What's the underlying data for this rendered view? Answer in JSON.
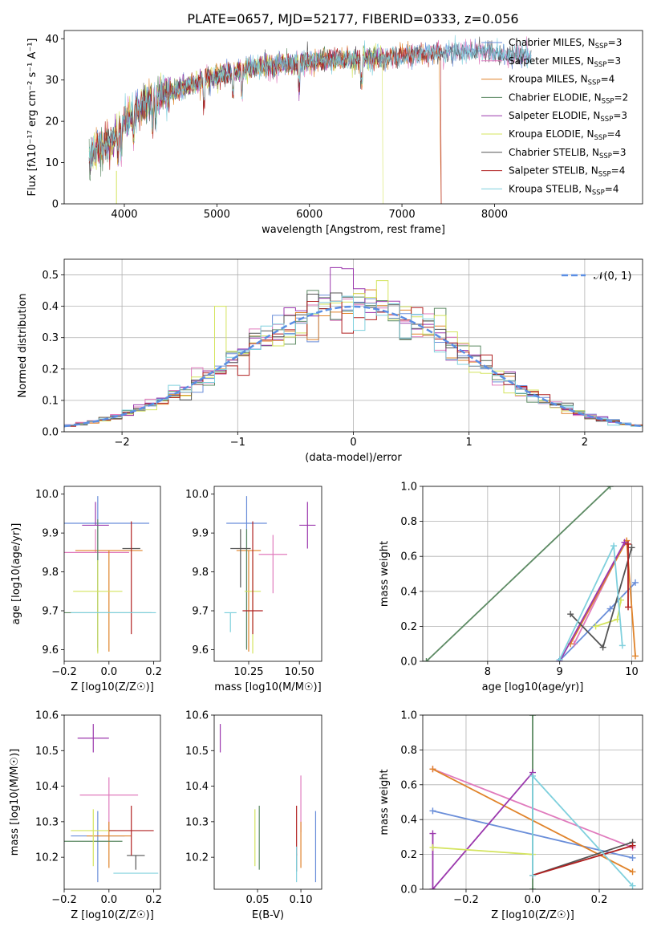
{
  "figure_title": "PLATE=0657, MJD=52177, FIBERID=0333, z=0.056",
  "colors": {
    "Chabrier MILES": "#6a8ed9",
    "Salpeter MILES": "#e07bbd",
    "Kroupa MILES": "#e0832a",
    "Chabrier ELODIE": "#5c8a63",
    "Salpeter ELODIE": "#9b38ad",
    "Kroupa ELODIE": "#d4e45e",
    "Chabrier STELIB": "#555555",
    "Salpeter STELIB": "#b02020",
    "Kroupa STELIB": "#7fd0dd",
    "normal": "#5b8ee3"
  },
  "chart_data": [
    {
      "id": "spectrum",
      "type": "line",
      "title": "",
      "xlabel": "wavelength [Angstrom, rest frame]",
      "ylabel": "Flux [fλ10⁻¹⁷ erg cm⁻² s⁻¹ A⁻¹]",
      "xlim": [
        3350,
        9600
      ],
      "ylim": [
        0,
        42
      ],
      "xticks": [
        4000,
        5000,
        6000,
        7000,
        8000
      ],
      "yticks": [
        0,
        10,
        20,
        30,
        40
      ],
      "legend_position": "right",
      "legend": [
        "Chabrier MILES, N_SSP=3",
        "Salpeter MILES, N_SSP=3",
        "Kroupa MILES, N_SSP=4",
        "Chabrier ELODIE, N_SSP=2",
        "Salpeter ELODIE, N_SSP=3",
        "Kroupa ELODIE, N_SSP=4",
        "Chabrier STELIB, N_SSP=3",
        "Salpeter STELIB, N_SSP=4",
        "Kroupa STELIB, N_SSP=4"
      ],
      "continuum": {
        "x": [
          3620,
          3700,
          3800,
          3900,
          4000,
          4200,
          4400,
          4600,
          4800,
          5000,
          5200,
          5400,
          5600,
          5800,
          6000,
          6200,
          6400,
          6600,
          6800,
          7000,
          7200,
          7400,
          7600,
          7800,
          8000,
          8200,
          8400
        ],
        "y": [
          11,
          13,
          14,
          16,
          20,
          24,
          26.5,
          28,
          29.5,
          31,
          32,
          33,
          33.5,
          34,
          34.5,
          35,
          35,
          35.2,
          35.5,
          35.8,
          36.2,
          36.6,
          37,
          37,
          36.5,
          36,
          36
        ]
      },
      "absorption_lines": [
        3933,
        3968,
        4102,
        4304,
        4340,
        4861,
        5175,
        5270,
        5890,
        6563
      ]
    },
    {
      "id": "residual_hist",
      "type": "line",
      "title": "",
      "xlabel": "(data-model)/error",
      "ylabel": "Normed distribution",
      "xlim": [
        -2.5,
        2.5
      ],
      "ylim": [
        0,
        0.55
      ],
      "xticks": [
        -2,
        -1,
        0,
        1,
        2
      ],
      "yticks": [
        0.0,
        0.1,
        0.2,
        0.3,
        0.4,
        0.5
      ],
      "legend_position": "top-right",
      "legend": [
        "𝒩(0, 1)"
      ],
      "bin_width": 0.1
    },
    {
      "id": "age_vs_Z",
      "type": "scatter",
      "xlabel": "Z [log10(Z/Z☉)]",
      "ylabel": "age  [log10(age/yr)]",
      "xlim": [
        -0.2,
        0.23
      ],
      "ylim": [
        9.57,
        10.02
      ],
      "xticks": [
        -0.2,
        0.0,
        0.2
      ],
      "yticks": [
        9.6,
        9.7,
        9.8,
        9.9,
        10.0
      ],
      "series": [
        {
          "name": "Chabrier MILES",
          "x": -0.05,
          "xerr": 0.23,
          "y": 9.925,
          "yerr": [
            0.32,
            0.07
          ]
        },
        {
          "name": "Salpeter MILES",
          "x": -0.06,
          "xerr": 0.15,
          "y": 9.85,
          "yerr": [
            0.0,
            0.06
          ]
        },
        {
          "name": "Kroupa MILES",
          "x": 0.0,
          "xerr": 0.15,
          "y": 9.855,
          "yerr": [
            0.26,
            0.0
          ]
        },
        {
          "name": "Chabrier ELODIE",
          "x": -0.05,
          "xerr": 0.24,
          "y": 9.695,
          "yerr": [
            0.1,
            0.24
          ]
        },
        {
          "name": "Salpeter ELODIE",
          "x": -0.06,
          "xerr": 0.06,
          "y": 9.92,
          "yerr": [
            0.0,
            0.06
          ]
        },
        {
          "name": "Kroupa ELODIE",
          "x": -0.05,
          "xerr": 0.11,
          "y": 9.75,
          "yerr": [
            0.16,
            0.08
          ]
        },
        {
          "name": "Chabrier STELIB",
          "x": 0.1,
          "xerr": 0.04,
          "y": 9.86,
          "yerr": [
            0.0,
            0.0
          ]
        },
        {
          "name": "Salpeter STELIB",
          "x": 0.1,
          "xerr": 0.0,
          "y": 9.7,
          "yerr": [
            0.06,
            0.23
          ]
        },
        {
          "name": "Kroupa STELIB",
          "x": 0.02,
          "xerr": 0.19,
          "y": 9.695,
          "yerr": [
            0.0,
            0.0
          ]
        }
      ]
    },
    {
      "id": "age_vs_mass",
      "type": "scatter",
      "xlabel": "mass [log10(M/M☉)]",
      "ylabel": "",
      "xlim": [
        10.08,
        10.61
      ],
      "ylim": [
        9.57,
        10.02
      ],
      "xticks": [
        10.25,
        10.5
      ],
      "yticks": [
        9.6,
        9.7,
        9.8,
        9.9,
        10.0
      ],
      "series": [
        {
          "name": "Chabrier MILES",
          "x": 10.24,
          "xerr": 0.1,
          "y": 9.925,
          "yerr": [
            0.32,
            0.07
          ]
        },
        {
          "name": "Salpeter MILES",
          "x": 10.37,
          "xerr": 0.07,
          "y": 9.845,
          "yerr": [
            0.1,
            0.05
          ]
        },
        {
          "name": "Kroupa MILES",
          "x": 10.25,
          "xerr": 0.06,
          "y": 9.855,
          "yerr": [
            0.26,
            0.0
          ]
        },
        {
          "name": "Chabrier ELODIE",
          "x": 10.24,
          "xerr": 0.0,
          "y": 9.7,
          "yerr": [
            0.1,
            0.21
          ]
        },
        {
          "name": "Salpeter ELODIE",
          "x": 10.54,
          "xerr": 0.04,
          "y": 9.92,
          "yerr": [
            0.06,
            0.06
          ]
        },
        {
          "name": "Kroupa ELODIE",
          "x": 10.27,
          "xerr": 0.04,
          "y": 9.75,
          "yerr": [
            0.16,
            0.08
          ]
        },
        {
          "name": "Chabrier STELIB",
          "x": 10.21,
          "xerr": 0.05,
          "y": 9.86,
          "yerr": [
            0.1,
            0.05
          ]
        },
        {
          "name": "Salpeter STELIB",
          "x": 10.27,
          "xerr": 0.05,
          "y": 9.7,
          "yerr": [
            0.06,
            0.23
          ]
        },
        {
          "name": "Kroupa STELIB",
          "x": 10.16,
          "xerr": 0.03,
          "y": 9.695,
          "yerr": [
            0.05,
            0.0
          ]
        }
      ]
    },
    {
      "id": "weight_vs_age",
      "type": "line",
      "xlabel": "age  [log10(age/yr)]",
      "ylabel": "mass weight",
      "xlim": [
        7.1,
        10.15
      ],
      "ylim": [
        0,
        1.0
      ],
      "xticks": [
        8,
        9,
        10
      ],
      "yticks": [
        0.0,
        0.2,
        0.4,
        0.6,
        0.8,
        1.0
      ],
      "series": [
        {
          "name": "Chabrier MILES",
          "x": [
            8.99,
            9.7,
            10.05
          ],
          "y": [
            0.0,
            0.3,
            0.45
          ]
        },
        {
          "name": "Salpeter MILES",
          "x": [
            9.2,
            9.9
          ],
          "y": [
            0.1,
            0.68
          ]
        },
        {
          "name": "Kroupa MILES",
          "x": [
            9.15,
            9.93,
            10.05
          ],
          "y": [
            0.1,
            0.69,
            0.03
          ]
        },
        {
          "name": "Chabrier ELODIE",
          "x": [
            7.15,
            9.7
          ],
          "y": [
            0.0,
            1.0
          ]
        },
        {
          "name": "Salpeter ELODIE",
          "x": [
            9.0,
            9.9
          ],
          "y": [
            0.0,
            0.68
          ]
        },
        {
          "name": "Kroupa ELODIE",
          "x": [
            9.5,
            9.8,
            9.85
          ],
          "y": [
            0.2,
            0.24,
            0.35
          ]
        },
        {
          "name": "Chabrier STELIB",
          "x": [
            9.15,
            9.6,
            10.0
          ],
          "y": [
            0.27,
            0.08,
            0.65
          ]
        },
        {
          "name": "Salpeter STELIB",
          "x": [
            9.95,
            9.95
          ],
          "y": [
            0.31,
            0.67
          ]
        },
        {
          "name": "Kroupa STELIB",
          "x": [
            9.0,
            9.75,
            9.87
          ],
          "y": [
            0.01,
            0.66,
            0.09
          ]
        }
      ]
    },
    {
      "id": "mass_vs_Z",
      "type": "scatter",
      "xlabel": "Z [log10(Z/Z☉)]",
      "ylabel": "mass [log10(M/M☉)]",
      "xlim": [
        -0.2,
        0.23
      ],
      "ylim": [
        10.11,
        10.6
      ],
      "xticks": [
        -0.2,
        0.0,
        0.2
      ],
      "yticks": [
        10.2,
        10.3,
        10.4,
        10.5,
        10.6
      ],
      "series": [
        {
          "name": "Chabrier MILES",
          "x": -0.05,
          "xerr": 0.12,
          "y": 10.26,
          "yerr": [
            0.13,
            0.07
          ]
        },
        {
          "name": "Salpeter MILES",
          "x": 0.0,
          "xerr": 0.13,
          "y": 10.375,
          "yerr": [
            0.1,
            0.05
          ]
        },
        {
          "name": "Kroupa MILES",
          "x": 0.0,
          "xerr": 0.1,
          "y": 10.26,
          "yerr": [
            0.09,
            0.04
          ]
        },
        {
          "name": "Chabrier ELODIE",
          "x": -0.07,
          "xerr": 0.13,
          "y": 10.245,
          "yerr": [
            0.0,
            0.0
          ]
        },
        {
          "name": "Salpeter ELODIE",
          "x": -0.07,
          "xerr": 0.07,
          "y": 10.535,
          "yerr": [
            0.04,
            0.04
          ]
        },
        {
          "name": "Kroupa ELODIE",
          "x": -0.07,
          "xerr": 0.1,
          "y": 10.275,
          "yerr": [
            0.1,
            0.06
          ]
        },
        {
          "name": "Chabrier STELIB",
          "x": 0.12,
          "xerr": 0.04,
          "y": 10.205,
          "yerr": [
            0.04,
            0.0
          ]
        },
        {
          "name": "Salpeter STELIB",
          "x": 0.1,
          "xerr": 0.1,
          "y": 10.275,
          "yerr": [
            0.07,
            0.07
          ]
        },
        {
          "name": "Kroupa STELIB",
          "x": 0.12,
          "xerr": 0.1,
          "y": 10.155,
          "yerr": [
            0.0,
            0.0
          ]
        }
      ]
    },
    {
      "id": "mass_vs_EBV",
      "type": "scatter",
      "xlabel": "E(B-V)",
      "ylabel": "",
      "xlim": [
        0.0,
        0.124
      ],
      "ylim": [
        10.11,
        10.6
      ],
      "xticks": [
        0.05,
        0.1
      ],
      "yticks": [
        10.2,
        10.3,
        10.4,
        10.5,
        10.6
      ],
      "series": [
        {
          "name": "Chabrier MILES",
          "x": 0.117,
          "xerr": 0.0,
          "y": 10.26,
          "yerr": [
            0.13,
            0.07
          ]
        },
        {
          "name": "Salpeter MILES",
          "x": 0.1,
          "xerr": 0.0,
          "y": 10.37,
          "yerr": [
            0.1,
            0.06
          ]
        },
        {
          "name": "Kroupa MILES",
          "x": 0.1,
          "xerr": 0.0,
          "y": 10.26,
          "yerr": [
            0.09,
            0.04
          ]
        },
        {
          "name": "Chabrier ELODIE",
          "x": 0.052,
          "xerr": 0.0,
          "y": 10.245,
          "yerr": [
            0.08,
            0.1
          ]
        },
        {
          "name": "Salpeter ELODIE",
          "x": 0.007,
          "xerr": 0.0,
          "y": 10.535,
          "yerr": [
            0.04,
            0.04
          ]
        },
        {
          "name": "Kroupa ELODIE",
          "x": 0.047,
          "xerr": 0.0,
          "y": 10.275,
          "yerr": [
            0.1,
            0.06
          ]
        },
        {
          "name": "Chabrier STELIB",
          "x": 0.095,
          "xerr": 0.0,
          "y": 10.21,
          "yerr": [
            0.05,
            0.0
          ]
        },
        {
          "name": "Salpeter STELIB",
          "x": 0.095,
          "xerr": 0.0,
          "y": 10.275,
          "yerr": [
            0.07,
            0.07
          ]
        },
        {
          "name": "Kroupa STELIB",
          "x": 0.095,
          "xerr": 0.0,
          "y": 10.18,
          "yerr": [
            0.05,
            0.05
          ]
        }
      ]
    },
    {
      "id": "weight_vs_Z",
      "type": "line",
      "xlabel": "Z [log10(Z/Z☉)]",
      "ylabel": "mass weight",
      "xlim": [
        -0.33,
        0.33
      ],
      "ylim": [
        0,
        1.0
      ],
      "xticks": [
        -0.2,
        0.0,
        0.2
      ],
      "yticks": [
        0.0,
        0.2,
        0.4,
        0.6,
        0.8,
        1.0
      ],
      "series": [
        {
          "name": "Chabrier MILES",
          "x": [
            -0.3,
            0.3
          ],
          "y": [
            0.45,
            0.18
          ]
        },
        {
          "name": "Salpeter MILES",
          "x": [
            -0.3,
            0.3
          ],
          "y": [
            0.69,
            0.24
          ]
        },
        {
          "name": "Kroupa MILES",
          "x": [
            -0.3,
            0.3
          ],
          "y": [
            0.69,
            0.1
          ]
        },
        {
          "name": "Chabrier ELODIE",
          "x": [
            0.0,
            0.0
          ],
          "y": [
            0.0,
            1.0
          ]
        },
        {
          "name": "Salpeter ELODIE",
          "x": [
            -0.3,
            -0.3,
            0.0
          ],
          "y": [
            0.32,
            0.0,
            0.67
          ]
        },
        {
          "name": "Kroupa ELODIE",
          "x": [
            -0.3,
            0.0
          ],
          "y": [
            0.24,
            0.2
          ]
        },
        {
          "name": "Chabrier STELIB",
          "x": [
            0.0,
            0.3
          ],
          "y": [
            0.08,
            0.27
          ]
        },
        {
          "name": "Salpeter STELIB",
          "x": [
            0.0,
            0.3
          ],
          "y": [
            0.08,
            0.25
          ]
        },
        {
          "name": "Kroupa STELIB",
          "x": [
            0.0,
            0.0,
            0.3
          ],
          "y": [
            0.08,
            0.65,
            0.02
          ]
        }
      ]
    }
  ]
}
